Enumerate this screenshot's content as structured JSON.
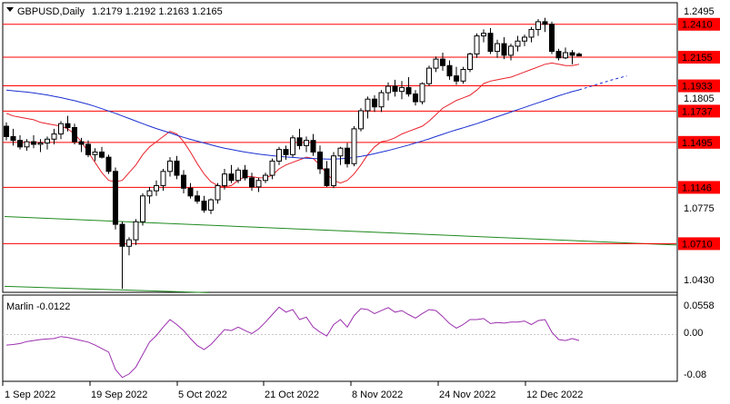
{
  "header": {
    "symbol": "GBPUSD,Daily",
    "ohlc": "1.2179 1.2192 1.2163 1.2165"
  },
  "indicator": {
    "label": "Marlin -0.0122",
    "scale": [
      "0.0558",
      "0.00",
      "-0.08"
    ]
  },
  "price_axis": {
    "ticks": [
      "1.2495",
      "1.1805",
      "1.0775",
      "1.0430"
    ]
  },
  "levels": [
    {
      "value": 1.241,
      "label": "1.2410"
    },
    {
      "value": 1.2155,
      "label": "1.2155"
    },
    {
      "value": 1.1933,
      "label": "1.1933"
    },
    {
      "value": 1.1737,
      "label": "1.1737"
    },
    {
      "value": 1.1495,
      "label": "1.1495"
    },
    {
      "value": 1.1146,
      "label": "1.1146"
    },
    {
      "value": 1.071,
      "label": "1.0710"
    }
  ],
  "time_axis": {
    "labels": [
      "1 Sep 2022",
      "19 Sep 2022",
      "5 Oct 2022",
      "21 Oct 2022",
      "8 Nov 2022",
      "24 Nov 2022",
      "12 Dec 2022"
    ]
  },
  "colors": {
    "level": "#ff0000",
    "level_badge": "#ff0000",
    "ma_red": "#e8212b",
    "ma_blue": "#1a2fd0",
    "ma_green": "#1f8a1f",
    "oscillator": "#9b2fae",
    "candle_up": "#ffffff",
    "candle_down": "#000000"
  },
  "chart_data": {
    "type": "candlestick",
    "y_range": [
      1.034,
      1.257
    ],
    "candles": [
      [
        1.162,
        1.165,
        1.151,
        1.154
      ],
      [
        1.154,
        1.16,
        1.147,
        1.151
      ],
      [
        1.151,
        1.155,
        1.144,
        1.146
      ],
      [
        1.146,
        1.152,
        1.143,
        1.15
      ],
      [
        1.15,
        1.155,
        1.145,
        1.148
      ],
      [
        1.148,
        1.152,
        1.142,
        1.149
      ],
      [
        1.149,
        1.154,
        1.144,
        1.152
      ],
      [
        1.152,
        1.16,
        1.148,
        1.156
      ],
      [
        1.156,
        1.166,
        1.152,
        1.164
      ],
      [
        1.164,
        1.17,
        1.158,
        1.161
      ],
      [
        1.161,
        1.164,
        1.148,
        1.15
      ],
      [
        1.15,
        1.153,
        1.142,
        1.148
      ],
      [
        1.148,
        1.151,
        1.138,
        1.14
      ],
      [
        1.14,
        1.145,
        1.135,
        1.142
      ],
      [
        1.142,
        1.146,
        1.137,
        1.138
      ],
      [
        1.138,
        1.14,
        1.125,
        1.127
      ],
      [
        1.127,
        1.13,
        1.082,
        1.086
      ],
      [
        1.086,
        1.088,
        1.036,
        1.069
      ],
      [
        1.069,
        1.076,
        1.062,
        1.074
      ],
      [
        1.074,
        1.09,
        1.07,
        1.088
      ],
      [
        1.088,
        1.11,
        1.085,
        1.108
      ],
      [
        1.108,
        1.115,
        1.102,
        1.112
      ],
      [
        1.112,
        1.12,
        1.108,
        1.116
      ],
      [
        1.116,
        1.129,
        1.112,
        1.127
      ],
      [
        1.127,
        1.138,
        1.123,
        1.135
      ],
      [
        1.135,
        1.139,
        1.121,
        1.124
      ],
      [
        1.124,
        1.128,
        1.11,
        1.114
      ],
      [
        1.114,
        1.118,
        1.106,
        1.108
      ],
      [
        1.108,
        1.112,
        1.102,
        1.104
      ],
      [
        1.104,
        1.108,
        1.095,
        1.097
      ],
      [
        1.097,
        1.106,
        1.094,
        1.105
      ],
      [
        1.105,
        1.118,
        1.102,
        1.116
      ],
      [
        1.116,
        1.129,
        1.113,
        1.125
      ],
      [
        1.125,
        1.132,
        1.118,
        1.12
      ],
      [
        1.12,
        1.13,
        1.118,
        1.128
      ],
      [
        1.128,
        1.132,
        1.12,
        1.122
      ],
      [
        1.122,
        1.126,
        1.112,
        1.115
      ],
      [
        1.115,
        1.122,
        1.111,
        1.12
      ],
      [
        1.12,
        1.126,
        1.118,
        1.124
      ],
      [
        1.124,
        1.137,
        1.121,
        1.135
      ],
      [
        1.135,
        1.146,
        1.132,
        1.144
      ],
      [
        1.144,
        1.147,
        1.136,
        1.14
      ],
      [
        1.14,
        1.155,
        1.138,
        1.153
      ],
      [
        1.153,
        1.16,
        1.144,
        1.147
      ],
      [
        1.147,
        1.154,
        1.142,
        1.151
      ],
      [
        1.151,
        1.156,
        1.139,
        1.142
      ],
      [
        1.142,
        1.147,
        1.125,
        1.129
      ],
      [
        1.129,
        1.135,
        1.115,
        1.116
      ],
      [
        1.116,
        1.142,
        1.114,
        1.139
      ],
      [
        1.139,
        1.146,
        1.132,
        1.145
      ],
      [
        1.145,
        1.149,
        1.13,
        1.133
      ],
      [
        1.133,
        1.162,
        1.131,
        1.16
      ],
      [
        1.16,
        1.176,
        1.158,
        1.174
      ],
      [
        1.174,
        1.185,
        1.168,
        1.183
      ],
      [
        1.183,
        1.186,
        1.173,
        1.177
      ],
      [
        1.177,
        1.19,
        1.173,
        1.188
      ],
      [
        1.188,
        1.196,
        1.182,
        1.193
      ],
      [
        1.193,
        1.198,
        1.185,
        1.189
      ],
      [
        1.189,
        1.197,
        1.183,
        1.192
      ],
      [
        1.192,
        1.2,
        1.185,
        1.187
      ],
      [
        1.187,
        1.19,
        1.178,
        1.181
      ],
      [
        1.181,
        1.196,
        1.179,
        1.195
      ],
      [
        1.195,
        1.209,
        1.193,
        1.207
      ],
      [
        1.207,
        1.216,
        1.204,
        1.214
      ],
      [
        1.214,
        1.219,
        1.205,
        1.209
      ],
      [
        1.209,
        1.213,
        1.198,
        1.201
      ],
      [
        1.201,
        1.208,
        1.194,
        1.197
      ],
      [
        1.197,
        1.208,
        1.195,
        1.206
      ],
      [
        1.206,
        1.219,
        1.204,
        1.218
      ],
      [
        1.218,
        1.234,
        1.215,
        1.232
      ],
      [
        1.232,
        1.237,
        1.227,
        1.234
      ],
      [
        1.234,
        1.238,
        1.218,
        1.22
      ],
      [
        1.22,
        1.229,
        1.215,
        1.226
      ],
      [
        1.226,
        1.231,
        1.214,
        1.217
      ],
      [
        1.217,
        1.226,
        1.213,
        1.224
      ],
      [
        1.224,
        1.232,
        1.22,
        1.228
      ],
      [
        1.228,
        1.233,
        1.224,
        1.231
      ],
      [
        1.231,
        1.239,
        1.227,
        1.237
      ],
      [
        1.237,
        1.245,
        1.232,
        1.243
      ],
      [
        1.243,
        1.246,
        1.235,
        1.241
      ],
      [
        1.241,
        1.243,
        1.218,
        1.22
      ],
      [
        1.22,
        1.222,
        1.213,
        1.215
      ],
      [
        1.215,
        1.223,
        1.214,
        1.219
      ],
      [
        1.219,
        1.221,
        1.21,
        1.217
      ],
      [
        1.2179,
        1.2192,
        1.2163,
        1.2165
      ]
    ],
    "ma_red": [
      1.172,
      1.17,
      1.169,
      1.168,
      1.167,
      1.165,
      1.164,
      1.163,
      1.162,
      1.16,
      1.156,
      1.15,
      1.142,
      1.134,
      1.126,
      1.12,
      1.119,
      1.12,
      1.126,
      1.132,
      1.14,
      1.146,
      1.15,
      1.154,
      1.158,
      1.156,
      1.15,
      1.142,
      1.133,
      1.125,
      1.119,
      1.116,
      1.115,
      1.116,
      1.12,
      1.123,
      1.123,
      1.122,
      1.122,
      1.124,
      1.129,
      1.132,
      1.134,
      1.136,
      1.138,
      1.137,
      1.132,
      1.125,
      1.12,
      1.118,
      1.12,
      1.125,
      1.132,
      1.14,
      1.146,
      1.15,
      1.151,
      1.153,
      1.156,
      1.158,
      1.16,
      1.162,
      1.166,
      1.171,
      1.176,
      1.179,
      1.182,
      1.184,
      1.186,
      1.19,
      1.195,
      1.197,
      1.198,
      1.199,
      1.2,
      1.202,
      1.204,
      1.206,
      1.208,
      1.21,
      1.211,
      1.21,
      1.209,
      1.209,
      1.21
    ],
    "ma_blue": [
      1.19,
      1.1895,
      1.189,
      1.1885,
      1.1878,
      1.187,
      1.1862,
      1.1852,
      1.1842,
      1.183,
      1.1818,
      1.1804,
      1.179,
      1.1774,
      1.1756,
      1.1738,
      1.172,
      1.17,
      1.168,
      1.166,
      1.164,
      1.162,
      1.1602,
      1.1585,
      1.1568,
      1.155,
      1.1534,
      1.1518,
      1.1504,
      1.149,
      1.1476,
      1.1462,
      1.145,
      1.144,
      1.143,
      1.142,
      1.1412,
      1.1404,
      1.1398,
      1.1392,
      1.1386,
      1.1382,
      1.1378,
      1.1374,
      1.1372,
      1.137,
      1.1368,
      1.1366,
      1.1366,
      1.1368,
      1.1372,
      1.1378,
      1.1386,
      1.1396,
      1.1408,
      1.142,
      1.1432,
      1.1446,
      1.146,
      1.1474,
      1.149,
      1.1506,
      1.1522,
      1.154,
      1.1558,
      1.1576,
      1.1592,
      1.1608,
      1.1624,
      1.164,
      1.1658,
      1.1676,
      1.1694,
      1.1712,
      1.173,
      1.1748,
      1.1766,
      1.1784,
      1.1802,
      1.182,
      1.1838,
      1.1856,
      1.1872,
      1.1888,
      1.1902
    ],
    "ma_blue_projection": [
      1.1902,
      1.1918,
      1.1934,
      1.195,
      1.1966,
      1.1982,
      1.1996,
      1.201
    ],
    "ma_green_start": 1.092,
    "ma_green_end": 1.07,
    "ma_green2_start": 1.038,
    "ma_green2_end": 1.033,
    "oscillator": {
      "y_range": [
        -0.09,
        0.07
      ],
      "values": [
        -0.021,
        -0.02,
        -0.018,
        -0.014,
        -0.012,
        -0.01,
        -0.009,
        -0.008,
        -0.004,
        -0.006,
        -0.009,
        -0.012,
        -0.015,
        -0.021,
        -0.028,
        -0.035,
        -0.07,
        -0.086,
        -0.079,
        -0.065,
        -0.04,
        -0.015,
        -0.002,
        0.015,
        0.03,
        0.02,
        0.008,
        -0.008,
        -0.022,
        -0.03,
        -0.02,
        -0.005,
        0.01,
        0.008,
        0.015,
        0.008,
        0.002,
        0.011,
        0.025,
        0.04,
        0.055,
        0.045,
        0.05,
        0.03,
        0.035,
        0.015,
        0.005,
        -0.003,
        0.02,
        0.03,
        0.015,
        0.038,
        0.052,
        0.05,
        0.042,
        0.048,
        0.054,
        0.045,
        0.048,
        0.04,
        0.033,
        0.042,
        0.05,
        0.048,
        0.036,
        0.022,
        0.013,
        0.02,
        0.03,
        0.03,
        0.032,
        0.022,
        0.024,
        0.023,
        0.025,
        0.025,
        0.027,
        0.02,
        0.028,
        0.03,
        0.005,
        -0.01,
        -0.012,
        -0.008,
        -0.012
      ]
    }
  }
}
